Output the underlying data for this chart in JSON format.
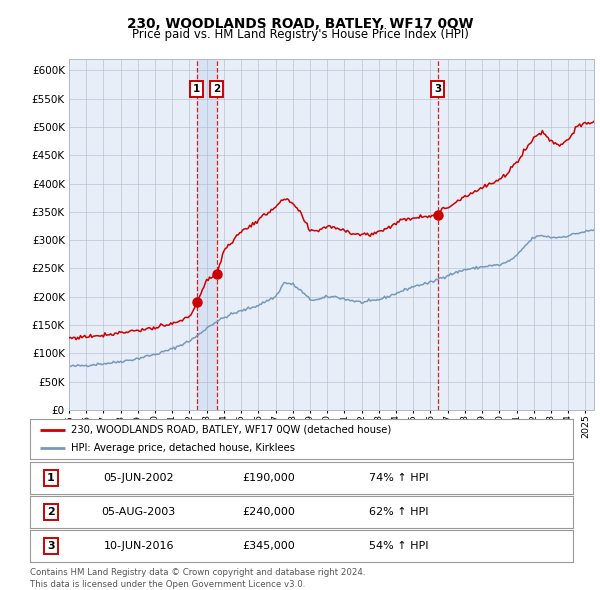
{
  "title1": "230, WOODLANDS ROAD, BATLEY, WF17 0QW",
  "title2": "Price paid vs. HM Land Registry's House Price Index (HPI)",
  "legend_line1": "230, WOODLANDS ROAD, BATLEY, WF17 0QW (detached house)",
  "legend_line2": "HPI: Average price, detached house, Kirklees",
  "transactions": [
    {
      "num": 1,
      "date_label": "05-JUN-2002",
      "date_x": 2002.42,
      "price": 190000,
      "pct": "74%",
      "dir": "↑"
    },
    {
      "num": 2,
      "date_label": "05-AUG-2003",
      "date_x": 2003.58,
      "price": 240000,
      "pct": "62%",
      "dir": "↑"
    },
    {
      "num": 3,
      "date_label": "10-JUN-2016",
      "date_x": 2016.42,
      "price": 345000,
      "pct": "54%",
      "dir": "↑"
    }
  ],
  "footer": "Contains HM Land Registry data © Crown copyright and database right 2024.\nThis data is licensed under the Open Government Licence v3.0.",
  "red_color": "#cc0000",
  "blue_color": "#7799bb",
  "plot_bg": "#e8eef8",
  "fig_bg": "#ffffff",
  "grid_color": "#b0b8cc",
  "ylim": [
    0,
    620000
  ],
  "xlim_start": 1995.0,
  "xlim_end": 2025.5
}
